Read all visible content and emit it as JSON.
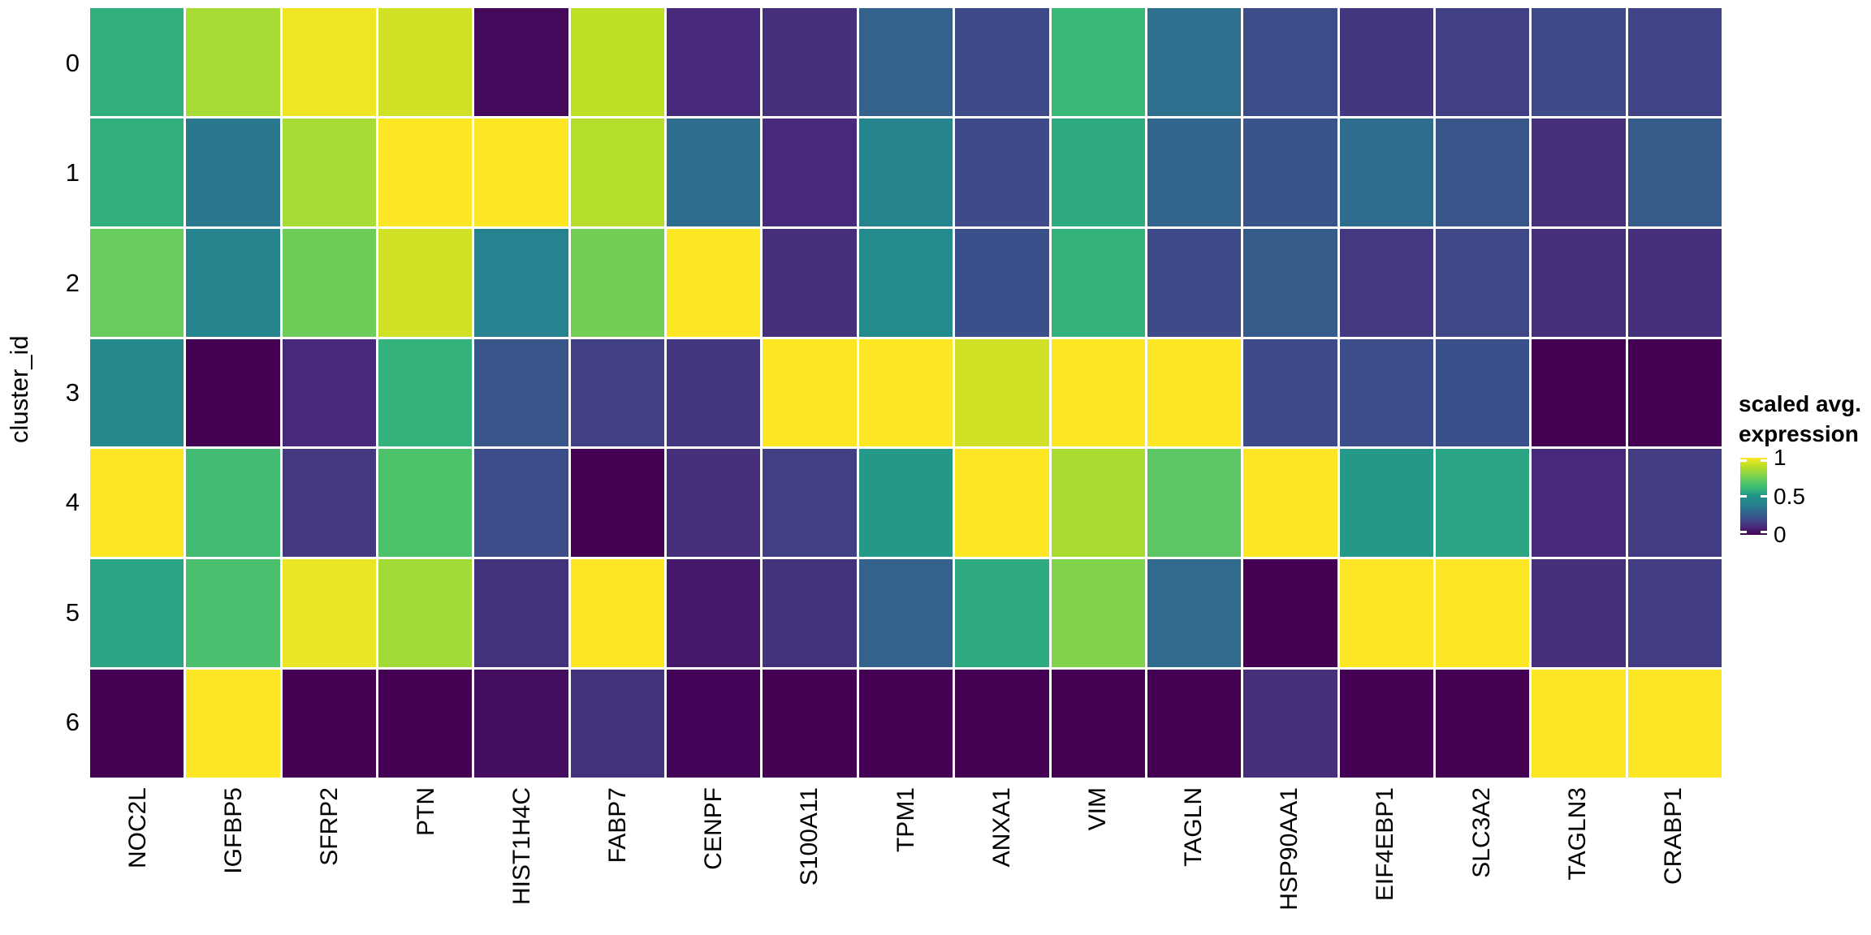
{
  "chart_data": {
    "type": "heatmap",
    "xlabel": "",
    "ylabel": "cluster_id",
    "categories_x": [
      "NOC2L",
      "IGFBP5",
      "SFRP2",
      "PTN",
      "HIST1H4C",
      "FABP7",
      "CENPF",
      "S100A11",
      "TPM1",
      "ANXA1",
      "VIM",
      "TAGLN",
      "HSP90AA1",
      "EIF4EBP1",
      "SLC3A2",
      "TAGLN3",
      "CRABP1"
    ],
    "categories_y": [
      "0",
      "1",
      "2",
      "3",
      "4",
      "5",
      "6"
    ],
    "values": [
      [
        0.58,
        0.85,
        0.98,
        0.93,
        0.02,
        0.9,
        0.11,
        0.12,
        0.28,
        0.2,
        0.61,
        0.33,
        0.21,
        0.14,
        0.17,
        0.2,
        0.18
      ],
      [
        0.58,
        0.36,
        0.85,
        1.0,
        1.0,
        0.88,
        0.32,
        0.11,
        0.41,
        0.2,
        0.57,
        0.29,
        0.23,
        0.32,
        0.24,
        0.12,
        0.26
      ],
      [
        0.72,
        0.41,
        0.73,
        0.93,
        0.4,
        0.74,
        1.0,
        0.12,
        0.46,
        0.22,
        0.59,
        0.2,
        0.26,
        0.15,
        0.19,
        0.12,
        0.12
      ],
      [
        0.44,
        0.0,
        0.1,
        0.59,
        0.24,
        0.17,
        0.14,
        1.0,
        1.0,
        0.93,
        1.0,
        1.0,
        0.2,
        0.21,
        0.22,
        0.0,
        0.0
      ],
      [
        1.0,
        0.63,
        0.15,
        0.66,
        0.21,
        0.0,
        0.12,
        0.17,
        0.52,
        1.0,
        0.86,
        0.69,
        1.0,
        0.52,
        0.55,
        0.11,
        0.16
      ],
      [
        0.55,
        0.65,
        0.97,
        0.84,
        0.13,
        1.0,
        0.06,
        0.13,
        0.28,
        0.57,
        0.77,
        0.31,
        0.0,
        1.0,
        1.0,
        0.12,
        0.16
      ],
      [
        0.0,
        1.0,
        0.0,
        0.0,
        0.03,
        0.13,
        0.01,
        0.0,
        0.0,
        0.0,
        0.0,
        0.0,
        0.12,
        0.0,
        0.0,
        1.0,
        1.0
      ]
    ],
    "value_range": [
      0,
      1
    ],
    "grid": false,
    "legend_position": "right",
    "colormap": "viridis",
    "colormap_stops": [
      "#440154",
      "#482878",
      "#3e4a89",
      "#31688e",
      "#26828e",
      "#21918c",
      "#35b779",
      "#5ec962",
      "#90d743",
      "#bddf26",
      "#fde725"
    ],
    "legend": {
      "title_line1": "scaled avg.",
      "title_line2": "expression",
      "ticks": [
        {
          "label": "1",
          "value": 1.0
        },
        {
          "label": "0.5",
          "value": 0.5
        },
        {
          "label": "0",
          "value": 0.0
        }
      ]
    }
  },
  "colors": {
    "background": "#ffffff",
    "cell_border": "#ffffff",
    "text": "#000000"
  }
}
